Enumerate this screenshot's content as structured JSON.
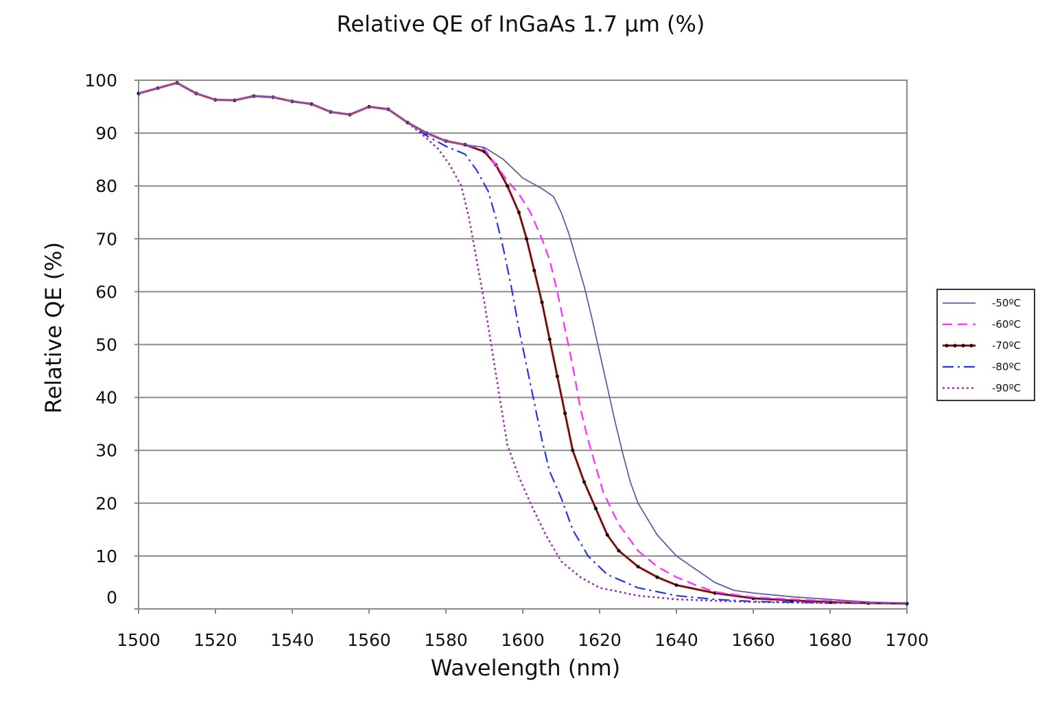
{
  "chart_data": {
    "type": "line",
    "title": "Relative QE of InGaAs 1.7 µm (%)",
    "xlabel": "Wavelength (nm)",
    "ylabel": "Relative QE (%)",
    "xlim": [
      1500,
      1700
    ],
    "ylim": [
      0,
      100
    ],
    "x_ticks": [
      "1500",
      "1520",
      "1540",
      "1560",
      "1580",
      "1600",
      "1620",
      "1640",
      "1660",
      "1680",
      "1700"
    ],
    "y_ticks": [
      "0",
      "10",
      "20",
      "30",
      "40",
      "50",
      "60",
      "70",
      "80",
      "90",
      "100"
    ],
    "grid": "horizontal",
    "legend_position": "right",
    "series": [
      {
        "name": "-50ºC",
        "color": "#5b5ea6",
        "style": "solid",
        "points": [
          [
            1500,
            97.5
          ],
          [
            1505,
            98.5
          ],
          [
            1510,
            99.5
          ],
          [
            1515,
            97.5
          ],
          [
            1520,
            96.3
          ],
          [
            1525,
            96.2
          ],
          [
            1530,
            97
          ],
          [
            1535,
            96.8
          ],
          [
            1540,
            96
          ],
          [
            1545,
            95.5
          ],
          [
            1550,
            94
          ],
          [
            1555,
            93.5
          ],
          [
            1560,
            95
          ],
          [
            1565,
            94.5
          ],
          [
            1570,
            92
          ],
          [
            1575,
            90
          ],
          [
            1580,
            88.5
          ],
          [
            1585,
            87.8
          ],
          [
            1590,
            87.3
          ],
          [
            1595,
            85
          ],
          [
            1600,
            81.5
          ],
          [
            1605,
            79.5
          ],
          [
            1608,
            78
          ],
          [
            1610,
            75
          ],
          [
            1612,
            71
          ],
          [
            1614,
            66
          ],
          [
            1616,
            61
          ],
          [
            1618,
            55
          ],
          [
            1620,
            48.5
          ],
          [
            1622,
            42
          ],
          [
            1624,
            35.5
          ],
          [
            1626,
            29.5
          ],
          [
            1628,
            24
          ],
          [
            1630,
            20
          ],
          [
            1635,
            14
          ],
          [
            1640,
            10
          ],
          [
            1645,
            7.5
          ],
          [
            1650,
            5
          ],
          [
            1655,
            3.5
          ],
          [
            1660,
            3
          ],
          [
            1670,
            2.3
          ],
          [
            1680,
            1.8
          ],
          [
            1690,
            1.3
          ],
          [
            1700,
            1.1
          ]
        ]
      },
      {
        "name": "-60ºC",
        "color": "#ff33ff",
        "style": "dashed",
        "points": [
          [
            1500,
            97.5
          ],
          [
            1505,
            98.5
          ],
          [
            1510,
            99.5
          ],
          [
            1515,
            97.5
          ],
          [
            1520,
            96.3
          ],
          [
            1525,
            96.2
          ],
          [
            1530,
            97
          ],
          [
            1535,
            96.8
          ],
          [
            1540,
            96
          ],
          [
            1545,
            95.5
          ],
          [
            1550,
            94
          ],
          [
            1555,
            93.5
          ],
          [
            1560,
            95
          ],
          [
            1565,
            94.5
          ],
          [
            1570,
            92
          ],
          [
            1575,
            90
          ],
          [
            1580,
            88.5
          ],
          [
            1585,
            87.8
          ],
          [
            1590,
            87
          ],
          [
            1593,
            84
          ],
          [
            1596,
            81
          ],
          [
            1599,
            78.5
          ],
          [
            1602,
            75
          ],
          [
            1605,
            70
          ],
          [
            1607,
            66
          ],
          [
            1609,
            60
          ],
          [
            1611,
            53
          ],
          [
            1613,
            46
          ],
          [
            1615,
            38
          ],
          [
            1617,
            32
          ],
          [
            1619,
            27
          ],
          [
            1621,
            22
          ],
          [
            1625,
            16
          ],
          [
            1630,
            11
          ],
          [
            1635,
            8
          ],
          [
            1640,
            6
          ],
          [
            1645,
            4.5
          ],
          [
            1650,
            3.2
          ],
          [
            1660,
            2.2
          ],
          [
            1670,
            1.8
          ],
          [
            1680,
            1.5
          ],
          [
            1690,
            1.2
          ],
          [
            1700,
            1.1
          ]
        ]
      },
      {
        "name": "-70ºC",
        "color": "#111111",
        "style": "dotted-markers",
        "points": [
          [
            1500,
            97.5
          ],
          [
            1505,
            98.5
          ],
          [
            1510,
            99.5
          ],
          [
            1515,
            97.5
          ],
          [
            1520,
            96.3
          ],
          [
            1525,
            96.2
          ],
          [
            1530,
            97
          ],
          [
            1535,
            96.8
          ],
          [
            1540,
            96
          ],
          [
            1545,
            95.5
          ],
          [
            1550,
            94
          ],
          [
            1555,
            93.5
          ],
          [
            1560,
            95
          ],
          [
            1565,
            94.5
          ],
          [
            1570,
            92
          ],
          [
            1575,
            90
          ],
          [
            1580,
            88.5
          ],
          [
            1585,
            87.8
          ],
          [
            1590,
            86.5
          ],
          [
            1593,
            84
          ],
          [
            1596,
            80
          ],
          [
            1599,
            75
          ],
          [
            1601,
            70
          ],
          [
            1603,
            64
          ],
          [
            1605,
            58
          ],
          [
            1607,
            51
          ],
          [
            1609,
            44
          ],
          [
            1611,
            37
          ],
          [
            1613,
            30
          ],
          [
            1616,
            24
          ],
          [
            1619,
            19
          ],
          [
            1622,
            14
          ],
          [
            1625,
            11
          ],
          [
            1630,
            8
          ],
          [
            1635,
            6
          ],
          [
            1640,
            4.5
          ],
          [
            1650,
            3
          ],
          [
            1660,
            2
          ],
          [
            1670,
            1.6
          ],
          [
            1680,
            1.3
          ],
          [
            1690,
            1.1
          ],
          [
            1700,
            1
          ]
        ]
      },
      {
        "name": "-80ºC",
        "color": "#2233ee",
        "style": "dash-dot",
        "points": [
          [
            1500,
            97.5
          ],
          [
            1505,
            98.5
          ],
          [
            1510,
            99.5
          ],
          [
            1515,
            97.5
          ],
          [
            1520,
            96.3
          ],
          [
            1525,
            96.2
          ],
          [
            1530,
            97
          ],
          [
            1535,
            96.8
          ],
          [
            1540,
            96
          ],
          [
            1545,
            95.5
          ],
          [
            1550,
            94
          ],
          [
            1555,
            93.5
          ],
          [
            1560,
            95
          ],
          [
            1565,
            94.5
          ],
          [
            1570,
            92
          ],
          [
            1575,
            89.5
          ],
          [
            1580,
            87.5
          ],
          [
            1585,
            86
          ],
          [
            1588,
            83
          ],
          [
            1591,
            79
          ],
          [
            1593,
            74
          ],
          [
            1595,
            68
          ],
          [
            1597,
            61
          ],
          [
            1599,
            53
          ],
          [
            1601,
            46
          ],
          [
            1603,
            39
          ],
          [
            1605,
            32
          ],
          [
            1607,
            26
          ],
          [
            1610,
            21
          ],
          [
            1613,
            15
          ],
          [
            1617,
            10
          ],
          [
            1622,
            6.5
          ],
          [
            1630,
            4
          ],
          [
            1640,
            2.5
          ],
          [
            1650,
            1.8
          ],
          [
            1660,
            1.4
          ],
          [
            1680,
            1.1
          ],
          [
            1700,
            1
          ]
        ]
      },
      {
        "name": "-90ºC",
        "color": "#9933aa",
        "style": "dotted",
        "points": [
          [
            1500,
            97.5
          ],
          [
            1505,
            98.5
          ],
          [
            1510,
            99.5
          ],
          [
            1515,
            97.5
          ],
          [
            1520,
            96.3
          ],
          [
            1525,
            96.2
          ],
          [
            1530,
            97
          ],
          [
            1535,
            96.8
          ],
          [
            1540,
            96
          ],
          [
            1545,
            95.5
          ],
          [
            1550,
            94
          ],
          [
            1555,
            93.5
          ],
          [
            1560,
            95
          ],
          [
            1565,
            94.5
          ],
          [
            1570,
            92
          ],
          [
            1575,
            89
          ],
          [
            1578,
            87
          ],
          [
            1581,
            84
          ],
          [
            1584,
            80
          ],
          [
            1586,
            74
          ],
          [
            1588,
            66
          ],
          [
            1590,
            58
          ],
          [
            1592,
            49
          ],
          [
            1594,
            40
          ],
          [
            1596,
            31
          ],
          [
            1599,
            25
          ],
          [
            1602,
            20
          ],
          [
            1606,
            14
          ],
          [
            1610,
            9
          ],
          [
            1615,
            6
          ],
          [
            1620,
            4
          ],
          [
            1630,
            2.5
          ],
          [
            1640,
            1.8
          ],
          [
            1660,
            1.3
          ],
          [
            1680,
            1.1
          ],
          [
            1700,
            1
          ]
        ]
      }
    ]
  }
}
